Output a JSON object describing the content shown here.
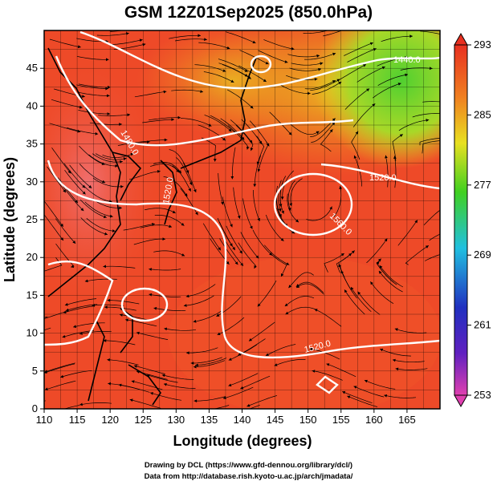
{
  "title": "GSM 12Z01Sep2025 (850.0hPa)",
  "footer": {
    "line1": "Drawing by DCL (https://www.gfd-dennou.org/library/dcl/)",
    "line2": "Data from http://database.rish.kyoto-u.ac.jp/arch/jmadata/"
  },
  "axes": {
    "xlabel": "Longitude (degrees)",
    "ylabel": "Latitude  (degrees)",
    "x_ticks": [
      "110",
      "115",
      "120",
      "125",
      "130",
      "135",
      "140",
      "145",
      "150",
      "155",
      "160",
      "165"
    ],
    "y_ticks": [
      "0",
      "5",
      "10",
      "15",
      "20",
      "25",
      "30",
      "35",
      "40",
      "45"
    ],
    "lon_range": [
      110,
      170
    ],
    "lat_range": [
      0,
      50
    ]
  },
  "colorbar": {
    "ticks": [
      "293",
      "285",
      "277",
      "269",
      "261",
      "253"
    ],
    "range": [
      253,
      293
    ],
    "colors": {
      "magenta": "#e040b0",
      "blue": "#2030c0",
      "cyan": "#20c0e0",
      "green": "#40d020",
      "yellow": "#e8e020",
      "orange": "#f08020",
      "red": "#e83020"
    }
  },
  "contour_labels": [
    "1440.0",
    "1480.0",
    "1520.0",
    "1560.0",
    "1520.0",
    "1520.0"
  ],
  "field_colors": {
    "warm": "#ee4a28",
    "hot": "#f06060",
    "mid": "#f07a20",
    "cool": "#e8c020",
    "cold": "#60d030",
    "streamline": "#000000",
    "contour": "#ffffff",
    "coast": "#000000"
  }
}
